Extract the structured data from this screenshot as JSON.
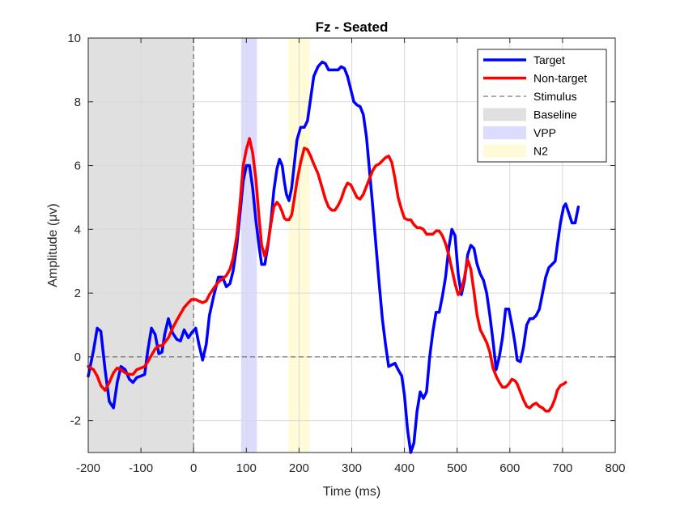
{
  "chart_data": {
    "type": "line",
    "title": "Fz - Seated",
    "xlabel": "Time (ms)",
    "ylabel": "Amplitude (μv)",
    "xlim": [
      -200,
      800
    ],
    "ylim": [
      -3,
      10
    ],
    "xticks": [
      -200,
      -100,
      0,
      100,
      200,
      300,
      400,
      500,
      600,
      700,
      800
    ],
    "yticks": [
      -2,
      0,
      2,
      4,
      6,
      8,
      10
    ],
    "grid": true,
    "legend_position": "top-right",
    "shaded_regions": [
      {
        "name": "Baseline",
        "x": [
          -200,
          0
        ],
        "color": "#e0e0e0"
      },
      {
        "name": "VPP",
        "x": [
          90,
          120
        ],
        "color": "#dcdcff"
      },
      {
        "name": "N2",
        "x": [
          180,
          220
        ],
        "color": "#fffbd8"
      }
    ],
    "reference_lines": [
      {
        "name": "Stimulus",
        "axis": "x",
        "value": 0,
        "style": "dashed",
        "color": "#555555"
      },
      {
        "axis": "y",
        "value": 0,
        "style": "dashed",
        "color": "#555555"
      }
    ],
    "series": [
      {
        "name": "Target",
        "color": "#0000ff",
        "points": [
          [
            -200,
            -0.6
          ],
          [
            -190,
            0.2
          ],
          [
            -183,
            0.9
          ],
          [
            -176,
            0.8
          ],
          [
            -168,
            -0.4
          ],
          [
            -160,
            -1.4
          ],
          [
            -152,
            -1.6
          ],
          [
            -145,
            -0.8
          ],
          [
            -138,
            -0.3
          ],
          [
            -130,
            -0.4
          ],
          [
            -122,
            -0.7
          ],
          [
            -115,
            -0.8
          ],
          [
            -108,
            -0.65
          ],
          [
            -100,
            -0.6
          ],
          [
            -93,
            -0.55
          ],
          [
            -87,
            0.2
          ],
          [
            -80,
            0.9
          ],
          [
            -73,
            0.7
          ],
          [
            -66,
            0.1
          ],
          [
            -60,
            0.15
          ],
          [
            -55,
            0.7
          ],
          [
            -48,
            1.2
          ],
          [
            -40,
            0.75
          ],
          [
            -32,
            0.55
          ],
          [
            -25,
            0.5
          ],
          [
            -18,
            0.85
          ],
          [
            -10,
            0.6
          ],
          [
            -4,
            0.75
          ],
          [
            4,
            0.9
          ],
          [
            10,
            0.4
          ],
          [
            17,
            -0.1
          ],
          [
            24,
            0.4
          ],
          [
            30,
            1.3
          ],
          [
            38,
            1.9
          ],
          [
            47,
            2.5
          ],
          [
            55,
            2.5
          ],
          [
            62,
            2.2
          ],
          [
            69,
            2.3
          ],
          [
            75,
            2.7
          ],
          [
            82,
            3.5
          ],
          [
            88,
            4.5
          ],
          [
            94,
            5.5
          ],
          [
            100,
            6.0
          ],
          [
            106,
            6.0
          ],
          [
            112,
            5.3
          ],
          [
            118,
            4.3
          ],
          [
            124,
            3.5
          ],
          [
            129,
            2.9
          ],
          [
            135,
            2.9
          ],
          [
            141,
            3.5
          ],
          [
            147,
            4.3
          ],
          [
            152,
            5.2
          ],
          [
            158,
            5.9
          ],
          [
            163,
            6.2
          ],
          [
            168,
            6.0
          ],
          [
            172,
            5.5
          ],
          [
            176,
            5.1
          ],
          [
            181,
            4.9
          ],
          [
            186,
            5.3
          ],
          [
            190,
            5.9
          ],
          [
            196,
            6.8
          ],
          [
            203,
            7.2
          ],
          [
            210,
            7.2
          ],
          [
            216,
            7.4
          ],
          [
            222,
            8.1
          ],
          [
            228,
            8.8
          ],
          [
            236,
            9.1
          ],
          [
            244,
            9.25
          ],
          [
            250,
            9.2
          ],
          [
            256,
            9.0
          ],
          [
            262,
            9.0
          ],
          [
            268,
            9.0
          ],
          [
            274,
            9.0
          ],
          [
            280,
            9.1
          ],
          [
            286,
            9.05
          ],
          [
            292,
            8.8
          ],
          [
            298,
            8.4
          ],
          [
            304,
            8.0
          ],
          [
            310,
            7.9
          ],
          [
            316,
            7.85
          ],
          [
            322,
            7.6
          ],
          [
            328,
            6.9
          ],
          [
            334,
            5.8
          ],
          [
            340,
            4.7
          ],
          [
            346,
            3.5
          ],
          [
            352,
            2.3
          ],
          [
            358,
            1.2
          ],
          [
            364,
            0.4
          ],
          [
            370,
            -0.3
          ],
          [
            376,
            -0.25
          ],
          [
            382,
            -0.2
          ],
          [
            388,
            -0.4
          ],
          [
            395,
            -0.6
          ],
          [
            400,
            -1.2
          ],
          [
            406,
            -2.3
          ],
          [
            412,
            -3.0
          ],
          [
            418,
            -2.7
          ],
          [
            424,
            -1.7
          ],
          [
            430,
            -1.1
          ],
          [
            436,
            -1.3
          ],
          [
            442,
            -1.1
          ],
          [
            448,
            0.0
          ],
          [
            454,
            0.8
          ],
          [
            460,
            1.4
          ],
          [
            466,
            1.4
          ],
          [
            472,
            1.9
          ],
          [
            478,
            2.5
          ],
          [
            484,
            3.4
          ],
          [
            490,
            4.0
          ],
          [
            496,
            3.8
          ],
          [
            502,
            2.6
          ],
          [
            508,
            1.95
          ],
          [
            514,
            2.4
          ],
          [
            520,
            3.2
          ],
          [
            526,
            3.5
          ],
          [
            532,
            3.4
          ],
          [
            538,
            2.9
          ],
          [
            544,
            2.6
          ],
          [
            550,
            2.4
          ],
          [
            556,
            2.0
          ],
          [
            562,
            1.3
          ],
          [
            568,
            0.5
          ],
          [
            574,
            -0.4
          ],
          [
            580,
            0.0
          ],
          [
            586,
            0.6
          ],
          [
            592,
            1.5
          ],
          [
            598,
            1.5
          ],
          [
            604,
            1.0
          ],
          [
            610,
            0.4
          ],
          [
            614,
            -0.1
          ],
          [
            620,
            -0.15
          ],
          [
            626,
            0.3
          ],
          [
            632,
            1.0
          ],
          [
            638,
            1.2
          ],
          [
            644,
            1.2
          ],
          [
            650,
            1.3
          ],
          [
            656,
            1.5
          ],
          [
            662,
            2.0
          ],
          [
            668,
            2.5
          ],
          [
            674,
            2.8
          ],
          [
            680,
            2.9
          ],
          [
            686,
            3.0
          ],
          [
            690,
            3.5
          ],
          [
            696,
            4.2
          ],
          [
            702,
            4.7
          ],
          [
            706,
            4.8
          ],
          [
            712,
            4.5
          ],
          [
            718,
            4.2
          ],
          [
            724,
            4.2
          ],
          [
            730,
            4.7
          ]
        ]
      },
      {
        "name": "Non-target",
        "color": "#ff0000",
        "points": [
          [
            -200,
            -0.3
          ],
          [
            -190,
            -0.4
          ],
          [
            -183,
            -0.6
          ],
          [
            -176,
            -0.9
          ],
          [
            -168,
            -1.05
          ],
          [
            -160,
            -0.8
          ],
          [
            -152,
            -0.5
          ],
          [
            -145,
            -0.35
          ],
          [
            -138,
            -0.4
          ],
          [
            -130,
            -0.5
          ],
          [
            -122,
            -0.55
          ],
          [
            -115,
            -0.55
          ],
          [
            -108,
            -0.4
          ],
          [
            -100,
            -0.35
          ],
          [
            -93,
            -0.3
          ],
          [
            -87,
            -0.15
          ],
          [
            -80,
            0.05
          ],
          [
            -73,
            0.25
          ],
          [
            -66,
            0.35
          ],
          [
            -60,
            0.35
          ],
          [
            -55,
            0.45
          ],
          [
            -48,
            0.6
          ],
          [
            -40,
            0.9
          ],
          [
            -32,
            1.15
          ],
          [
            -25,
            1.35
          ],
          [
            -18,
            1.55
          ],
          [
            -10,
            1.7
          ],
          [
            -4,
            1.8
          ],
          [
            4,
            1.8
          ],
          [
            10,
            1.75
          ],
          [
            17,
            1.7
          ],
          [
            24,
            1.75
          ],
          [
            30,
            1.95
          ],
          [
            38,
            2.15
          ],
          [
            47,
            2.35
          ],
          [
            55,
            2.45
          ],
          [
            62,
            2.55
          ],
          [
            69,
            2.75
          ],
          [
            75,
            3.1
          ],
          [
            82,
            3.8
          ],
          [
            88,
            4.8
          ],
          [
            94,
            6.0
          ],
          [
            100,
            6.5
          ],
          [
            106,
            6.85
          ],
          [
            112,
            6.4
          ],
          [
            118,
            5.6
          ],
          [
            124,
            4.4
          ],
          [
            129,
            3.5
          ],
          [
            135,
            3.15
          ],
          [
            141,
            3.55
          ],
          [
            147,
            4.2
          ],
          [
            152,
            4.7
          ],
          [
            158,
            4.85
          ],
          [
            163,
            4.75
          ],
          [
            168,
            4.55
          ],
          [
            172,
            4.35
          ],
          [
            176,
            4.3
          ],
          [
            181,
            4.3
          ],
          [
            186,
            4.45
          ],
          [
            190,
            4.85
          ],
          [
            196,
            5.5
          ],
          [
            203,
            6.1
          ],
          [
            210,
            6.55
          ],
          [
            216,
            6.5
          ],
          [
            222,
            6.3
          ],
          [
            228,
            6.05
          ],
          [
            236,
            5.75
          ],
          [
            244,
            5.3
          ],
          [
            250,
            4.95
          ],
          [
            256,
            4.7
          ],
          [
            262,
            4.6
          ],
          [
            268,
            4.6
          ],
          [
            274,
            4.75
          ],
          [
            280,
            4.95
          ],
          [
            286,
            5.25
          ],
          [
            292,
            5.45
          ],
          [
            298,
            5.4
          ],
          [
            304,
            5.2
          ],
          [
            310,
            5.0
          ],
          [
            316,
            4.95
          ],
          [
            322,
            5.1
          ],
          [
            328,
            5.35
          ],
          [
            334,
            5.6
          ],
          [
            340,
            5.85
          ],
          [
            346,
            6.0
          ],
          [
            352,
            6.05
          ],
          [
            358,
            6.15
          ],
          [
            364,
            6.25
          ],
          [
            370,
            6.3
          ],
          [
            376,
            6.1
          ],
          [
            382,
            5.6
          ],
          [
            388,
            5.0
          ],
          [
            395,
            4.6
          ],
          [
            400,
            4.35
          ],
          [
            406,
            4.3
          ],
          [
            412,
            4.3
          ],
          [
            418,
            4.15
          ],
          [
            424,
            4.05
          ],
          [
            430,
            4.05
          ],
          [
            436,
            4.0
          ],
          [
            442,
            3.85
          ],
          [
            448,
            3.85
          ],
          [
            454,
            3.85
          ],
          [
            460,
            3.95
          ],
          [
            466,
            3.95
          ],
          [
            472,
            3.8
          ],
          [
            478,
            3.55
          ],
          [
            484,
            3.2
          ],
          [
            490,
            2.75
          ],
          [
            496,
            2.3
          ],
          [
            502,
            1.95
          ],
          [
            508,
            2.1
          ],
          [
            514,
            2.5
          ],
          [
            520,
            3.05
          ],
          [
            526,
            2.75
          ],
          [
            532,
            2.05
          ],
          [
            538,
            1.3
          ],
          [
            544,
            0.85
          ],
          [
            550,
            0.65
          ],
          [
            556,
            0.45
          ],
          [
            562,
            0.15
          ],
          [
            568,
            -0.35
          ],
          [
            574,
            -0.6
          ],
          [
            580,
            -0.8
          ],
          [
            586,
            -0.95
          ],
          [
            592,
            -0.95
          ],
          [
            598,
            -0.85
          ],
          [
            604,
            -0.7
          ],
          [
            610,
            -0.75
          ],
          [
            614,
            -0.85
          ],
          [
            620,
            -1.1
          ],
          [
            626,
            -1.35
          ],
          [
            632,
            -1.55
          ],
          [
            638,
            -1.6
          ],
          [
            644,
            -1.5
          ],
          [
            650,
            -1.45
          ],
          [
            656,
            -1.55
          ],
          [
            662,
            -1.6
          ],
          [
            668,
            -1.7
          ],
          [
            674,
            -1.7
          ],
          [
            680,
            -1.55
          ],
          [
            686,
            -1.3
          ],
          [
            690,
            -1.05
          ],
          [
            696,
            -0.9
          ],
          [
            702,
            -0.85
          ],
          [
            706,
            -0.8
          ]
        ]
      }
    ],
    "legend": [
      {
        "label": "Target",
        "style": "line",
        "color": "#0000ff"
      },
      {
        "label": "Non-target",
        "style": "line",
        "color": "#ff0000"
      },
      {
        "label": "Stimulus",
        "style": "dashed",
        "color": "#555555"
      },
      {
        "label": "Baseline",
        "style": "patch",
        "color": "#e0e0e0"
      },
      {
        "label": "VPP",
        "style": "patch",
        "color": "#dcdcff"
      },
      {
        "label": "N2",
        "style": "patch",
        "color": "#fffbd8"
      }
    ]
  }
}
